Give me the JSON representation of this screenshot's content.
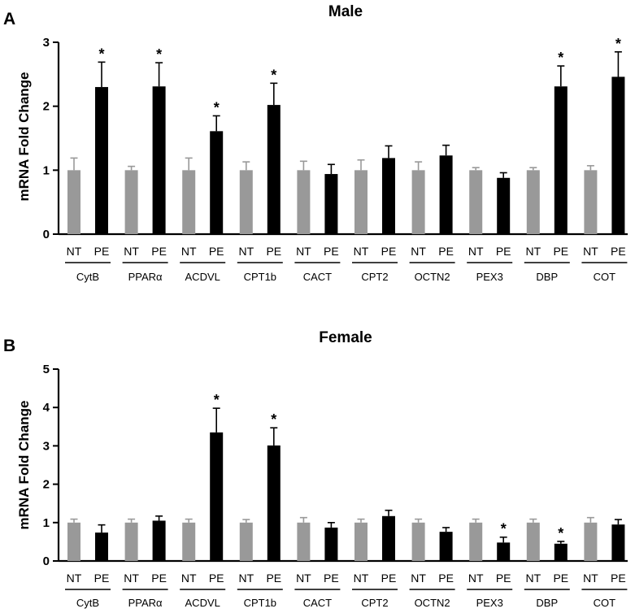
{
  "chart_data": [
    {
      "type": "bar",
      "panel": "A",
      "title": "Male",
      "xlabel": "",
      "ylabel": "mRNA Fold Change",
      "ylim": [
        0,
        3
      ],
      "yticks": [
        0,
        1,
        2,
        3
      ],
      "conditions": [
        "NT",
        "PE"
      ],
      "categories": [
        "CytB",
        "PPARα",
        "ACDVL",
        "CPT1b",
        "CACT",
        "CPT2",
        "OCTN2",
        "PEX3",
        "DBP",
        "COT"
      ],
      "series": [
        {
          "name": "NT",
          "color": "#999999",
          "values": [
            1.0,
            1.0,
            1.0,
            1.0,
            1.0,
            1.0,
            1.0,
            1.0,
            1.0,
            1.0
          ],
          "errors": [
            0.19,
            0.06,
            0.19,
            0.13,
            0.14,
            0.16,
            0.13,
            0.04,
            0.04,
            0.07
          ]
        },
        {
          "name": "PE",
          "color": "#000000",
          "values": [
            2.3,
            2.31,
            1.61,
            2.02,
            0.94,
            1.19,
            1.23,
            0.88,
            2.31,
            2.46
          ],
          "errors": [
            0.39,
            0.37,
            0.24,
            0.34,
            0.15,
            0.19,
            0.16,
            0.08,
            0.32,
            0.39
          ],
          "significant": [
            true,
            true,
            true,
            true,
            false,
            false,
            false,
            false,
            true,
            true
          ]
        }
      ],
      "significance_marker": "*"
    },
    {
      "type": "bar",
      "panel": "B",
      "title": "Female",
      "xlabel": "",
      "ylabel": "mRNA Fold Change",
      "ylim": [
        0,
        5
      ],
      "yticks": [
        0,
        1,
        2,
        3,
        4,
        5
      ],
      "conditions": [
        "NT",
        "PE"
      ],
      "categories": [
        "CytB",
        "PPARα",
        "ACDVL",
        "CPT1b",
        "CACT",
        "CPT2",
        "OCTN2",
        "PEX3",
        "DBP",
        "COT"
      ],
      "series": [
        {
          "name": "NT",
          "color": "#999999",
          "values": [
            1.0,
            1.0,
            1.0,
            1.0,
            1.0,
            1.0,
            1.0,
            1.0,
            1.0,
            1.0
          ],
          "errors": [
            0.09,
            0.09,
            0.09,
            0.08,
            0.13,
            0.09,
            0.09,
            0.09,
            0.09,
            0.13
          ]
        },
        {
          "name": "PE",
          "color": "#000000",
          "values": [
            0.74,
            1.05,
            3.35,
            3.01,
            0.87,
            1.17,
            0.76,
            0.48,
            0.45,
            0.95
          ],
          "errors": [
            0.2,
            0.12,
            0.63,
            0.46,
            0.13,
            0.15,
            0.11,
            0.14,
            0.06,
            0.13
          ],
          "significant": [
            false,
            false,
            true,
            true,
            false,
            false,
            false,
            true,
            true,
            false
          ]
        }
      ],
      "significance_marker": "*"
    }
  ]
}
